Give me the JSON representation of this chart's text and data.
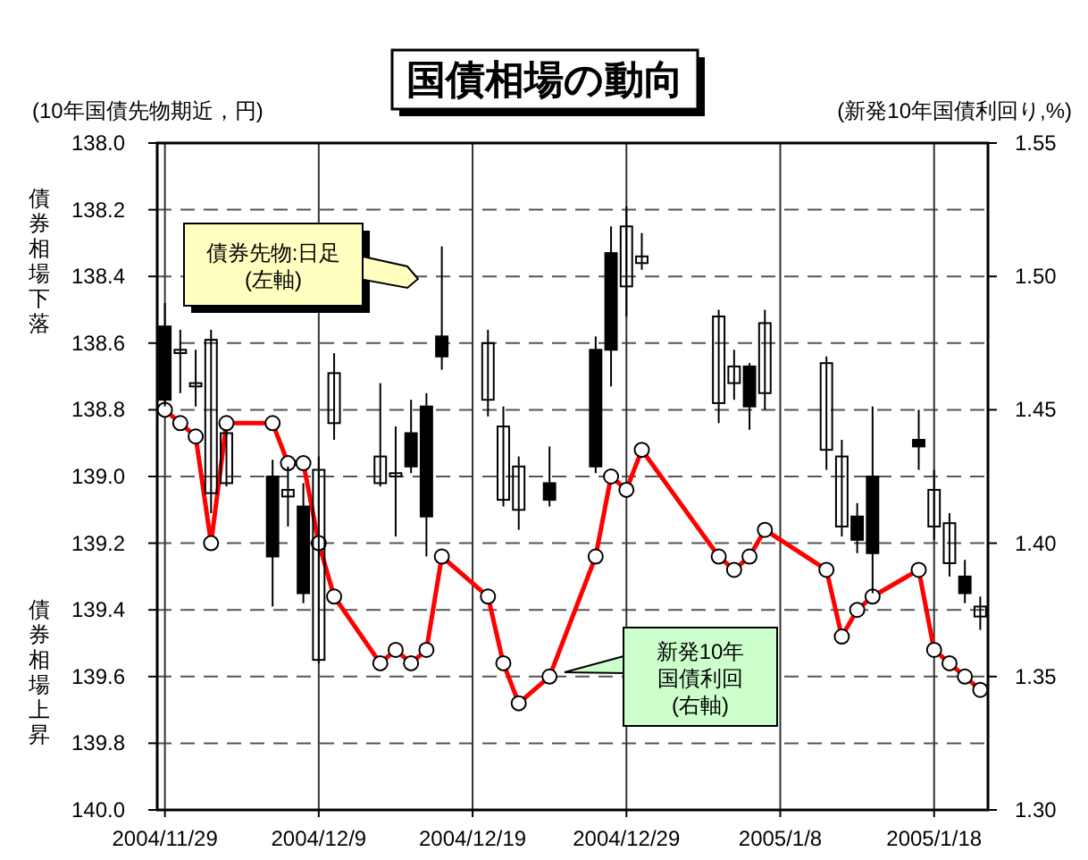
{
  "chart_data": {
    "type": "candlestick",
    "title": "国債相場の動向",
    "ylabel": "(10年国債先物期近，円)",
    "y2label": "(新発10年国債利回り,%)",
    "annotations": [
      "債券相場下落",
      "債券相場上昇",
      "債券先物:日足(左軸)",
      "新発10年国債利回(右軸)"
    ],
    "x": [
      "2004-11-29",
      "2004-11-30",
      "2004-12-01",
      "2004-12-02",
      "2004-12-03",
      "2004-12-06",
      "2004-12-07",
      "2004-12-08",
      "2004-12-09",
      "2004-12-10",
      "2004-12-13",
      "2004-12-14",
      "2004-12-15",
      "2004-12-16",
      "2004-12-17",
      "2004-12-20",
      "2004-12-21",
      "2004-12-22",
      "2004-12-24",
      "2004-12-27",
      "2004-12-28",
      "2004-12-29",
      "2004-12-30",
      "2005-01-04",
      "2005-01-05",
      "2005-01-06",
      "2005-01-07",
      "2005-01-11",
      "2005-01-12",
      "2005-01-13",
      "2005-01-14",
      "2005-01-17",
      "2005-01-18",
      "2005-01-19",
      "2005-01-20",
      "2005-01-21"
    ],
    "series": [
      {
        "color": "#000000",
        "ohlc": [
          [
            138.77,
            138.79,
            138.48,
            138.55
          ],
          [
            138.62,
            138.75,
            138.56,
            138.63
          ],
          [
            138.72,
            138.79,
            138.62,
            138.73
          ],
          [
            138.59,
            139.11,
            138.56,
            139.05
          ],
          [
            138.87,
            139.03,
            138.86,
            139.02
          ],
          [
            139.24,
            139.39,
            138.95,
            139.0
          ],
          [
            139.04,
            139.15,
            138.97,
            139.06
          ],
          [
            139.35,
            139.38,
            139.02,
            139.09
          ],
          [
            138.98,
            139.56,
            138.94,
            139.55
          ],
          [
            138.69,
            138.89,
            138.63,
            138.84
          ],
          [
            138.94,
            139.03,
            138.72,
            139.02
          ],
          [
            138.99,
            139.18,
            138.85,
            139.0
          ],
          [
            138.97,
            138.99,
            138.77,
            138.87
          ],
          [
            139.12,
            139.24,
            138.75,
            138.79
          ],
          [
            138.64,
            138.68,
            138.31,
            138.58
          ],
          [
            138.6,
            138.82,
            138.56,
            138.77
          ],
          [
            138.85,
            139.09,
            138.79,
            139.07
          ],
          [
            138.97,
            139.16,
            138.94,
            139.1
          ],
          [
            139.07,
            139.09,
            138.91,
            139.02
          ],
          [
            138.97,
            138.99,
            138.58,
            138.62
          ],
          [
            138.62,
            138.73,
            138.25,
            138.33
          ],
          [
            138.25,
            138.52,
            138.19,
            138.43
          ],
          [
            138.34,
            138.38,
            138.27,
            138.36
          ],
          [
            138.52,
            138.84,
            138.5,
            138.78
          ],
          [
            138.67,
            138.77,
            138.62,
            138.72
          ],
          [
            138.79,
            138.86,
            138.66,
            138.67
          ],
          [
            138.54,
            138.8,
            138.5,
            138.75
          ],
          [
            138.66,
            138.98,
            138.64,
            138.92
          ],
          [
            138.94,
            139.18,
            138.89,
            139.15
          ],
          [
            139.19,
            139.23,
            139.08,
            139.12
          ],
          [
            139.23,
            139.35,
            138.79,
            139.0
          ],
          [
            138.91,
            138.98,
            138.8,
            138.89
          ],
          [
            139.04,
            139.19,
            138.98,
            139.15
          ],
          [
            139.14,
            139.3,
            139.11,
            139.26
          ],
          [
            139.35,
            139.38,
            139.25,
            139.3
          ],
          [
            139.39,
            139.46,
            139.36,
            139.42
          ]
        ]
      },
      {
        "type": "line",
        "axis": "y2",
        "color": "#ff0000",
        "marker": "circle",
        "values": [
          1.45,
          1.445,
          1.44,
          1.4,
          1.445,
          1.445,
          1.43,
          1.43,
          1.4,
          1.38,
          1.355,
          1.36,
          1.355,
          1.36,
          1.395,
          1.38,
          1.355,
          1.34,
          1.35,
          1.395,
          1.425,
          1.42,
          1.435,
          1.395,
          1.39,
          1.395,
          1.405,
          1.39,
          1.365,
          1.375,
          1.38,
          1.39,
          1.36,
          1.355,
          1.35,
          1.345
        ]
      }
    ],
    "xlim": [
      "2004-11-28T12:00",
      "2005-01-21T12:00"
    ],
    "xticks": [
      {
        "value": "2004-11-29",
        "label": "2004/11/29"
      },
      {
        "value": "2004-12-09",
        "label": "2004/12/9"
      },
      {
        "value": "2004-12-19",
        "label": "2004/12/19"
      },
      {
        "value": "2004-12-29",
        "label": "2004/12/29"
      },
      {
        "value": "2005-01-08",
        "label": "2005/1/8"
      },
      {
        "value": "2005-01-18",
        "label": "2005/1/18"
      }
    ],
    "ylim": [
      140.0,
      138.0
    ],
    "yticks": [
      {
        "value": 138.0,
        "label": "138.0"
      },
      {
        "value": 138.2,
        "label": "138.2"
      },
      {
        "value": 138.4,
        "label": "138.4"
      },
      {
        "value": 138.6,
        "label": "138.6"
      },
      {
        "value": 138.8,
        "label": "138.8"
      },
      {
        "value": 139.0,
        "label": "139.0"
      },
      {
        "value": 139.2,
        "label": "139.2"
      },
      {
        "value": 139.4,
        "label": "139.4"
      },
      {
        "value": 139.6,
        "label": "139.6"
      },
      {
        "value": 139.8,
        "label": "139.8"
      },
      {
        "value": 140.0,
        "label": "140.0"
      }
    ],
    "y2lim": [
      1.3,
      1.55
    ],
    "y2ticks": [
      {
        "value": 1.3,
        "label": "1.30"
      },
      {
        "value": 1.35,
        "label": "1.35"
      },
      {
        "value": 1.4,
        "label": "1.40"
      },
      {
        "value": 1.45,
        "label": "1.45"
      },
      {
        "value": 1.5,
        "label": "1.50"
      },
      {
        "value": 1.55,
        "label": "1.55"
      }
    ],
    "grid": true
  }
}
